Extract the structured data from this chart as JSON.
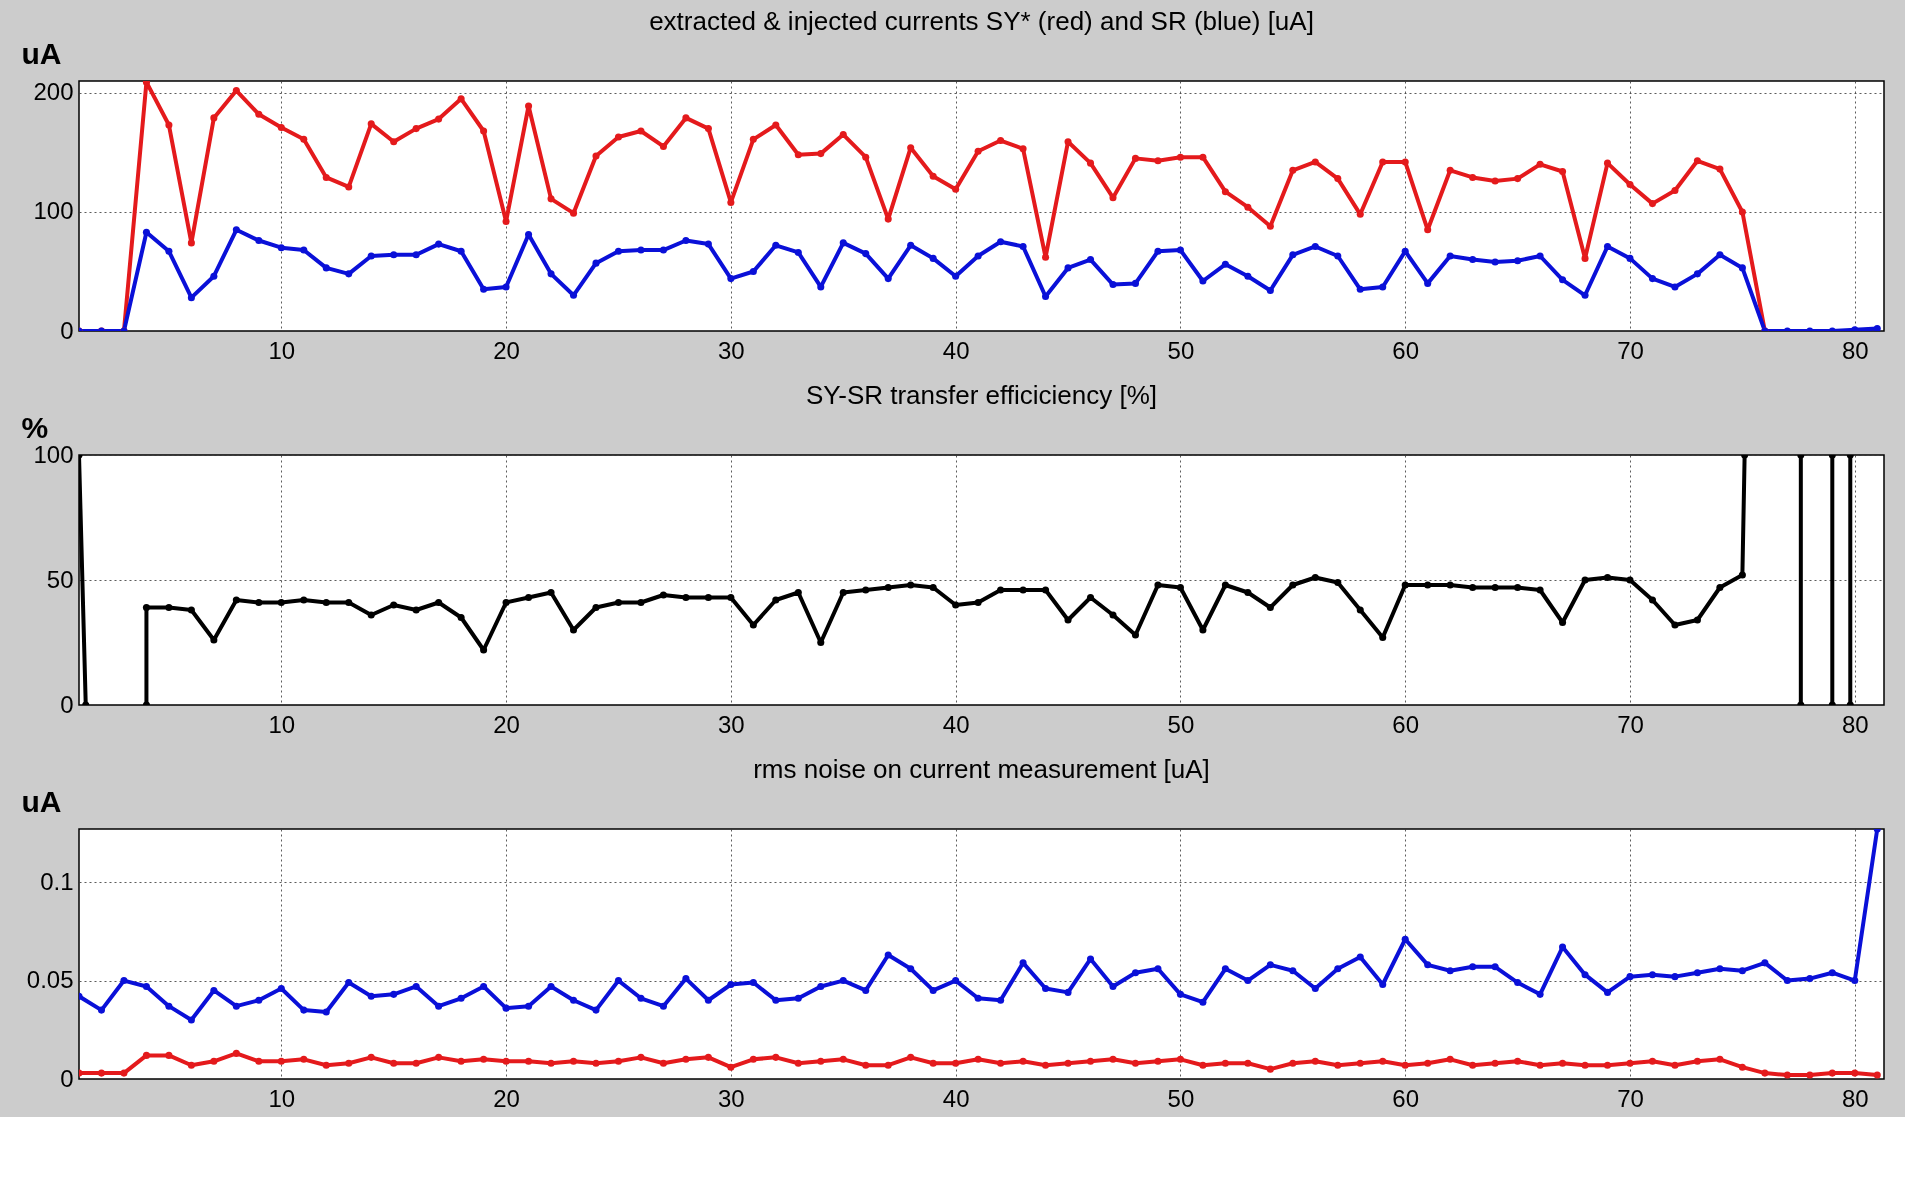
{
  "chart_data": [
    {
      "type": "line",
      "title": "extracted & injected currents SY* (red) and SR (blue) [uA]",
      "ylabel": "uA",
      "xlim": [
        1,
        81.3
      ],
      "xticks": [
        10,
        20,
        30,
        40,
        50,
        60,
        70,
        80
      ],
      "ylim": [
        0,
        210
      ],
      "yticks": [
        0,
        100,
        200
      ],
      "grid": true,
      "marker": "circle",
      "line_style": "solid",
      "x": [
        1,
        2,
        3,
        4,
        5,
        6,
        7,
        8,
        9,
        10,
        11,
        12,
        13,
        14,
        15,
        16,
        17,
        18,
        19,
        20,
        21,
        22,
        23,
        24,
        25,
        26,
        27,
        28,
        29,
        30,
        31,
        32,
        33,
        34,
        35,
        36,
        37,
        38,
        39,
        40,
        41,
        42,
        43,
        44,
        45,
        46,
        47,
        48,
        49,
        50,
        51,
        52,
        53,
        54,
        55,
        56,
        57,
        58,
        59,
        60,
        61,
        62,
        63,
        64,
        65,
        66,
        67,
        68,
        69,
        70,
        71,
        72,
        73,
        74,
        75,
        76,
        77,
        78,
        79,
        80,
        81
      ],
      "series": [
        {
          "color": "#e41a1c",
          "values": [
            0,
            0,
            0,
            209,
            173,
            74,
            179,
            202,
            182,
            171,
            161,
            129,
            121,
            174,
            159,
            170,
            178,
            195,
            168,
            92,
            189,
            111,
            99,
            147,
            163,
            168,
            155,
            179,
            170,
            108,
            161,
            173,
            148,
            149,
            165,
            146,
            94,
            154,
            130,
            119,
            151,
            160,
            153,
            62,
            159,
            141,
            112,
            145,
            143,
            146,
            146,
            117,
            104,
            88,
            135,
            142,
            128,
            98,
            142,
            142,
            85,
            135,
            129,
            126,
            128,
            140,
            134,
            61,
            141,
            123,
            107,
            118,
            143,
            136,
            100,
            0,
            null,
            null,
            null,
            null,
            null
          ]
        },
        {
          "color": "#0a10d8",
          "values": [
            0,
            0,
            0,
            83,
            67,
            28,
            46,
            85,
            76,
            70,
            68,
            53,
            48,
            63,
            64,
            64,
            73,
            67,
            35,
            37,
            81,
            48,
            30,
            57,
            67,
            68,
            68,
            76,
            73,
            44,
            50,
            72,
            66,
            37,
            74,
            65,
            44,
            72,
            61,
            46,
            63,
            75,
            71,
            29,
            53,
            60,
            39,
            40,
            67,
            68,
            42,
            56,
            46,
            34,
            64,
            71,
            63,
            35,
            37,
            67,
            40,
            63,
            60,
            58,
            59,
            63,
            43,
            30,
            71,
            61,
            44,
            37,
            48,
            64,
            53,
            0,
            0,
            0,
            0,
            1,
            2
          ]
        }
      ]
    },
    {
      "type": "line",
      "title": "SY-SR transfer efficiciency [%]",
      "ylabel": "%",
      "xlim": [
        1,
        81.3
      ],
      "xticks": [
        10,
        20,
        30,
        40,
        50,
        60,
        70,
        80
      ],
      "ylim": [
        0,
        100
      ],
      "yticks": [
        0,
        50,
        100
      ],
      "grid": true,
      "marker": "circle",
      "line_style": "solid",
      "series": [
        {
          "color": "#000000",
          "x": [
            1,
            1.3,
            2,
            4,
            4,
            5,
            6,
            7,
            8,
            9,
            10,
            11,
            12,
            13,
            14,
            15,
            16,
            17,
            18,
            19,
            20,
            21,
            22,
            23,
            24,
            25,
            26,
            27,
            28,
            29,
            30,
            31,
            32,
            33,
            34,
            35,
            36,
            37,
            38,
            39,
            40,
            41,
            42,
            43,
            44,
            45,
            46,
            47,
            48,
            49,
            50,
            51,
            52,
            53,
            54,
            55,
            56,
            57,
            58,
            59,
            60,
            61,
            62,
            63,
            64,
            65,
            66,
            67,
            68,
            69,
            70,
            71,
            72,
            73,
            74,
            75,
            75.1,
            76,
            77.6,
            77.6,
            78,
            79,
            79,
            79.4,
            79.8,
            79.8
          ],
          "values": [
            100,
            0,
            null,
            0,
            39,
            39,
            38,
            26,
            42,
            41,
            41,
            42,
            41,
            41,
            36,
            40,
            38,
            41,
            35,
            22,
            41,
            43,
            45,
            30,
            39,
            41,
            41,
            44,
            43,
            43,
            43,
            32,
            42,
            45,
            25,
            45,
            46,
            47,
            48,
            47,
            40,
            41,
            46,
            46,
            46,
            34,
            43,
            36,
            28,
            48,
            47,
            30,
            48,
            45,
            39,
            48,
            51,
            49,
            38,
            27,
            48,
            48,
            48,
            47,
            47,
            47,
            46,
            33,
            50,
            51,
            50,
            42,
            32,
            34,
            47,
            52,
            100,
            null,
            0,
            100,
            null,
            0,
            100,
            null,
            0,
            100
          ]
        }
      ]
    },
    {
      "type": "line",
      "title": "rms noise on current measurement [uA]",
      "ylabel": "uA",
      "xlim": [
        1,
        81.3
      ],
      "xticks": [
        10,
        20,
        30,
        40,
        50,
        60,
        70,
        80
      ],
      "ylim": [
        0,
        0.127
      ],
      "yticks": [
        0,
        0.05,
        0.1
      ],
      "grid": true,
      "marker": "circle",
      "line_style": "solid",
      "x": [
        1,
        2,
        3,
        4,
        5,
        6,
        7,
        8,
        9,
        10,
        11,
        12,
        13,
        14,
        15,
        16,
        17,
        18,
        19,
        20,
        21,
        22,
        23,
        24,
        25,
        26,
        27,
        28,
        29,
        30,
        31,
        32,
        33,
        34,
        35,
        36,
        37,
        38,
        39,
        40,
        41,
        42,
        43,
        44,
        45,
        46,
        47,
        48,
        49,
        50,
        51,
        52,
        53,
        54,
        55,
        56,
        57,
        58,
        59,
        60,
        61,
        62,
        63,
        64,
        65,
        66,
        67,
        68,
        69,
        70,
        71,
        72,
        73,
        74,
        75,
        76,
        77,
        78,
        79,
        80,
        81
      ],
      "series": [
        {
          "color": "#e41a1c",
          "values": [
            0.003,
            0.003,
            0.003,
            0.012,
            0.012,
            0.007,
            0.009,
            0.013,
            0.009,
            0.009,
            0.01,
            0.007,
            0.008,
            0.011,
            0.008,
            0.008,
            0.011,
            0.009,
            0.01,
            0.009,
            0.009,
            0.008,
            0.009,
            0.008,
            0.009,
            0.011,
            0.008,
            0.01,
            0.011,
            0.006,
            0.01,
            0.011,
            0.008,
            0.009,
            0.01,
            0.007,
            0.007,
            0.011,
            0.008,
            0.008,
            0.01,
            0.008,
            0.009,
            0.007,
            0.008,
            0.009,
            0.01,
            0.008,
            0.009,
            0.01,
            0.007,
            0.008,
            0.008,
            0.005,
            0.008,
            0.009,
            0.007,
            0.008,
            0.009,
            0.007,
            0.008,
            0.01,
            0.007,
            0.008,
            0.009,
            0.007,
            0.008,
            0.007,
            0.007,
            0.008,
            0.009,
            0.007,
            0.009,
            0.01,
            0.006,
            0.003,
            0.002,
            0.002,
            0.003,
            0.003,
            0.002
          ]
        },
        {
          "color": "#0a10d8",
          "values": [
            0.042,
            0.035,
            0.05,
            0.047,
            0.037,
            0.03,
            0.045,
            0.037,
            0.04,
            0.046,
            0.035,
            0.034,
            0.049,
            0.042,
            0.043,
            0.047,
            0.037,
            0.041,
            0.047,
            0.036,
            0.037,
            0.047,
            0.04,
            0.035,
            0.05,
            0.041,
            0.037,
            0.051,
            0.04,
            0.048,
            0.049,
            0.04,
            0.041,
            0.047,
            0.05,
            0.045,
            0.063,
            0.056,
            0.045,
            0.05,
            0.041,
            0.04,
            0.059,
            0.046,
            0.044,
            0.061,
            0.047,
            0.054,
            0.056,
            0.043,
            0.039,
            0.056,
            0.05,
            0.058,
            0.055,
            0.046,
            0.056,
            0.062,
            0.048,
            0.071,
            0.058,
            0.055,
            0.057,
            0.057,
            0.049,
            0.043,
            0.067,
            0.053,
            0.044,
            0.052,
            0.053,
            0.052,
            0.054,
            0.056,
            0.055,
            0.059,
            0.05,
            0.051,
            0.054,
            0.05,
            0.127
          ]
        }
      ]
    }
  ]
}
